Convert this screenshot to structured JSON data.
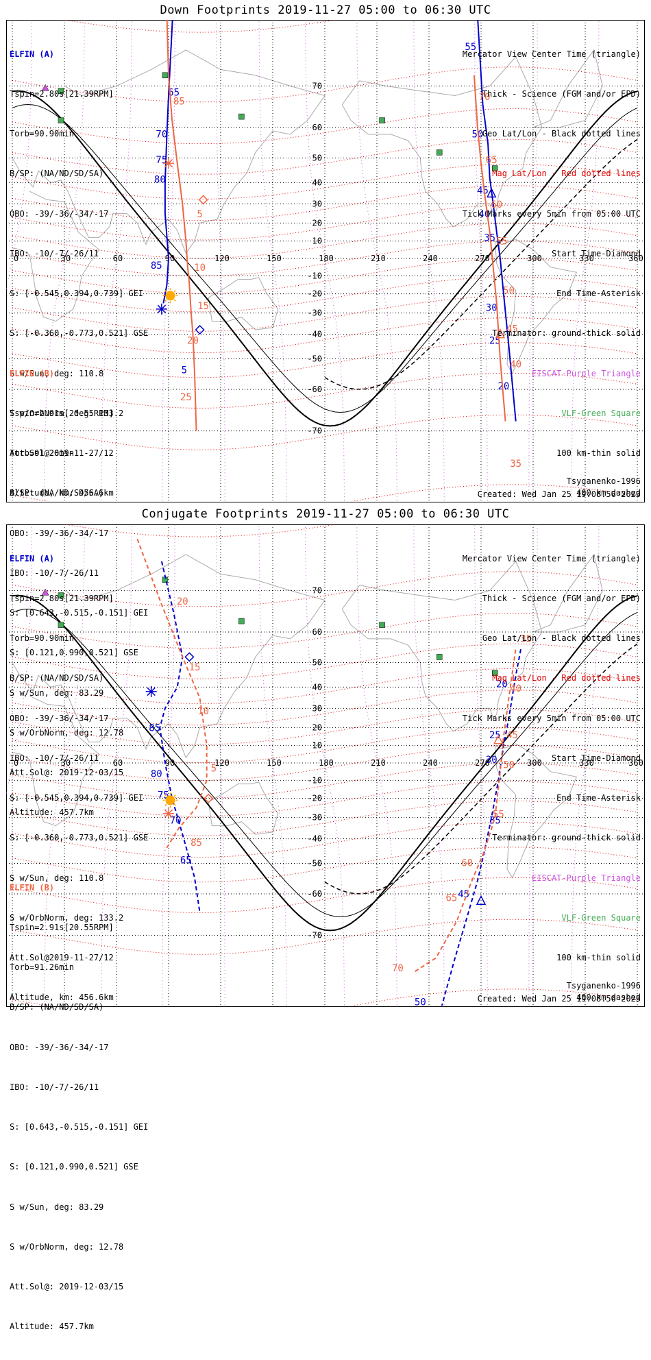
{
  "colors": {
    "elfin_a": "#0000cc",
    "elfin_b": "#ee6644",
    "geo_grid": "#000000",
    "mag_grid": "#dd0000",
    "eiscat": "#cc55dd",
    "vlf": "#44aa55",
    "sun": "#ffaa00",
    "coast": "#aaaaaa"
  },
  "panels": [
    {
      "title": "Down Footprints 2019-11-27 05:00 to 06:30 UTC",
      "right_legend": [
        {
          "text": "Mercator View Center Time (triangle)",
          "color": "#000000"
        },
        {
          "text": "Thick - Science (FGM and/or EPD)",
          "color": "#000000"
        },
        {
          "text": "Geo Lat/Lon - Black dotted lines",
          "color": "#000000"
        },
        {
          "text": "Mag Lat/Lon - Red dotted lines",
          "color": "#dd0000"
        },
        {
          "text": "Tick Marks every 5min from 05:00 UTC",
          "color": "#000000"
        },
        {
          "text": "Start Time-Diamond",
          "color": "#000000"
        },
        {
          "text": "End Time-Asterisk",
          "color": "#000000"
        },
        {
          "text": "Terminator: ground-thick solid",
          "color": "#000000"
        },
        {
          "text": "EISCAT-Purple Triangle",
          "color": "#cc55dd"
        },
        {
          "text": "VLF-Green Square",
          "color": "#44aa55"
        },
        {
          "text": "100 km-thin solid",
          "color": "#000000"
        },
        {
          "text": "400 km-dashed",
          "color": "#000000"
        }
      ],
      "model": "Tsyganenko-1996",
      "created": "Created: Wed Jan 25 19:08:56 2023"
    },
    {
      "title": "Conjugate Footprints 2019-11-27 05:00 to 06:30 UTC",
      "right_legend": [
        {
          "text": "Mercator View Center Time (triangle)",
          "color": "#000000"
        },
        {
          "text": "Thick - Science (FGM and/or EPD)",
          "color": "#000000"
        },
        {
          "text": "Geo Lat/Lon - Black dotted lines",
          "color": "#000000"
        },
        {
          "text": "Mag Lat/Lon - Red dotted lines",
          "color": "#dd0000"
        },
        {
          "text": "Tick Marks every 5min from 05:00 UTC",
          "color": "#000000"
        },
        {
          "text": "Start Time-Diamond",
          "color": "#000000"
        },
        {
          "text": "End Time-Asterisk",
          "color": "#000000"
        },
        {
          "text": "Terminator: ground-thick solid",
          "color": "#000000"
        },
        {
          "text": "EISCAT-Purple Triangle",
          "color": "#cc55dd"
        },
        {
          "text": "VLF-Green Square",
          "color": "#44aa55"
        },
        {
          "text": "100 km-thin solid",
          "color": "#000000"
        },
        {
          "text": "400 km-dashed",
          "color": "#000000"
        }
      ],
      "model": "Tsyganenko-1996",
      "created": "Created: Wed Jan 25 19:08:56 2023"
    }
  ],
  "elfin_a": {
    "label": "ELFIN (A)",
    "lines": [
      "Tspin=2.80s[21.39RPM]",
      "Torb=90.90min",
      "B/SP: (NA/ND/SD/SA)",
      "OBO: -39/-36/-34/-17",
      "IBO: -10/-7/-26/11",
      "S: [-0.545,0.394,0.739] GEI",
      "S: [-0.360,-0.773,0.521] GSE",
      "S w/Sun, deg: 110.8",
      "S w/OrbNorm, deg: 133.2",
      "Att.Sol@2019-11-27/12",
      "Altitude, km: 456.6km"
    ]
  },
  "elfin_b": {
    "label": "ELFIN (B)",
    "lines": [
      "Tspin=2.91s[20.55RPM]",
      "Torb=91.26min",
      "B/SP: (NA/ND/SD/SA)",
      "OBO: -39/-36/-34/-17",
      "IBO: -10/-7/-26/11",
      "S: [0.643,-0.515,-0.151] GEI",
      "S: [0.121,0.990,0.521] GSE",
      "S w/Sun, deg: 83.29",
      "S w/OrbNorm, deg: 12.78",
      "Att.Sol@: 2019-12-03/15",
      "Altitude: 457.7km"
    ]
  },
  "chart_data": [
    {
      "type": "map",
      "projection": "Mercator",
      "panel": "Down Footprints",
      "lon_ticks": [
        "0",
        "30",
        "60",
        "90",
        "120",
        "150",
        "180",
        "210",
        "240",
        "270",
        "300",
        "330",
        "360"
      ],
      "lat_ticks": [
        "70",
        "60",
        "50",
        "40",
        "30",
        "20",
        "10",
        "-10",
        "-20",
        "-30",
        "-40",
        "-50",
        "-60",
        "-70"
      ],
      "xlim": [
        0,
        360
      ],
      "ylim": [
        -78,
        78
      ],
      "grid": true,
      "tracks": [
        {
          "name": "ELFIN (A)",
          "color": "#0000cc",
          "segments": [
            [
              [
                93,
                82
              ],
              [
                90,
                68
              ],
              [
                89,
                58
              ],
              [
                88,
                40
              ],
              [
                88,
                25
              ],
              [
                90,
                0
              ],
              [
                89,
                -15
              ],
              [
                87,
                -25
              ]
            ],
            [
              [
                268,
                80
              ],
              [
                271,
                66
              ],
              [
                274,
                55
              ],
              [
                275,
                42
              ],
              [
                277,
                30
              ],
              [
                279,
                15
              ],
              [
                281,
                0
              ],
              [
                283,
                -20
              ],
              [
                286,
                -45
              ],
              [
                290,
                -68
              ]
            ]
          ],
          "labels": [
            {
              "text": "65",
              "lon": 93,
              "lat": 68
            },
            {
              "text": "70",
              "lon": 86,
              "lat": 57
            },
            {
              "text": "75",
              "lon": 86,
              "lat": 48
            },
            {
              "text": "80",
              "lon": 85,
              "lat": 40
            },
            {
              "text": "85",
              "lon": 83,
              "lat": -6
            },
            {
              "text": "5",
              "lon": 99,
              "lat": -55
            },
            {
              "text": "55",
              "lon": 264,
              "lat": 76
            },
            {
              "text": "50",
              "lon": 268,
              "lat": 57
            },
            {
              "text": "45",
              "lon": 271,
              "lat": 35
            },
            {
              "text": "40",
              "lon": 272,
              "lat": 23
            },
            {
              "text": "35",
              "lon": 275,
              "lat": 10
            },
            {
              "text": "30",
              "lon": 276,
              "lat": -29
            },
            {
              "text": "25",
              "lon": 278,
              "lat": -44
            },
            {
              "text": "20",
              "lon": 283,
              "lat": -60
            }
          ],
          "start": {
            "lon": 108,
            "lat": -38
          },
          "end": {
            "lon": 86,
            "lat": -28
          },
          "center": {
            "lon": 276,
            "lat": 35
          }
        },
        {
          "name": "ELFIN (B)",
          "color": "#ee6644",
          "segments": [
            [
              [
                89,
                80
              ],
              [
                90,
                72
              ],
              [
                92,
                62
              ],
              [
                95,
                48
              ],
              [
                98,
                30
              ],
              [
                100,
                10
              ],
              [
                101,
                -5
              ],
              [
                102,
                -15
              ],
              [
                103,
                -30
              ],
              [
                104,
                -40
              ],
              [
                105,
                -55
              ],
              [
                106,
                -70
              ]
            ],
            [
              [
                266,
                72
              ],
              [
                268,
                60
              ],
              [
                270,
                48
              ],
              [
                272,
                35
              ],
              [
                275,
                15
              ],
              [
                277,
                -5
              ],
              [
                279,
                -25
              ],
              [
                281,
                -50
              ],
              [
                284,
                -68
              ]
            ]
          ],
          "labels": [
            {
              "text": "85",
              "lon": 96,
              "lat": 66
            },
            {
              "text": "5",
              "lon": 108,
              "lat": 23
            },
            {
              "text": "10",
              "lon": 108,
              "lat": -7
            },
            {
              "text": "15",
              "lon": 110,
              "lat": -28
            },
            {
              "text": "20",
              "lon": 104,
              "lat": -44
            },
            {
              "text": "25",
              "lon": 100,
              "lat": -63
            },
            {
              "text": "70",
              "lon": 272,
              "lat": 67
            },
            {
              "text": "65",
              "lon": 276,
              "lat": 48
            },
            {
              "text": "60",
              "lon": 279,
              "lat": 28
            },
            {
              "text": "55",
              "lon": 282,
              "lat": 8
            },
            {
              "text": "50",
              "lon": 286,
              "lat": -20
            },
            {
              "text": "45",
              "lon": 288,
              "lat": -39
            },
            {
              "text": "40",
              "lon": 290,
              "lat": -53
            },
            {
              "text": "35",
              "lon": 290,
              "lat": -76
            }
          ],
          "start": {
            "lon": 110,
            "lat": 32
          },
          "end": {
            "lon": 90,
            "lat": 48
          },
          "center": {
            "lon": 281,
            "lat": -40
          }
        }
      ],
      "vlf_stations": [
        {
          "lon": 88,
          "lat": 72
        },
        {
          "lon": 28,
          "lat": 69
        },
        {
          "lon": 28,
          "lat": 62
        },
        {
          "lon": 132,
          "lat": 63
        },
        {
          "lon": 213,
          "lat": 62
        },
        {
          "lon": 246,
          "lat": 52
        },
        {
          "lon": 278,
          "lat": 46
        }
      ],
      "eiscat_stations": [
        {
          "lon": 19,
          "lat": 69.6
        }
      ],
      "sun": {
        "lon": 91,
        "lat": -21
      }
    },
    {
      "type": "map",
      "projection": "Mercator",
      "panel": "Conjugate Footprints",
      "lon_ticks": [
        "0",
        "30",
        "60",
        "90",
        "120",
        "150",
        "180",
        "210",
        "240",
        "270",
        "300",
        "330",
        "360"
      ],
      "lat_ticks": [
        "70",
        "60",
        "50",
        "40",
        "30",
        "20",
        "10",
        "-10",
        "-20",
        "-30",
        "-40",
        "-50",
        "-60",
        "-70"
      ],
      "xlim": [
        0,
        360
      ],
      "ylim": [
        -78,
        78
      ],
      "grid": true,
      "tracks": [
        {
          "name": "ELFIN (A)",
          "color": "#0000cc",
          "segments": [
            [
              [
                86,
                75
              ],
              [
                93,
                65
              ],
              [
                98,
                52
              ],
              [
                95,
                40
              ],
              [
                88,
                30
              ],
              [
                85,
                20
              ],
              [
                88,
                0
              ],
              [
                92,
                -20
              ],
              [
                98,
                -38
              ],
              [
                105,
                -55
              ],
              [
                108,
                -65
              ]
            ],
            [
              [
                244,
                -82
              ],
              [
                255,
                -74
              ],
              [
                262,
                -66
              ],
              [
                268,
                -56
              ],
              [
                272,
                -45
              ],
              [
                276,
                -30
              ],
              [
                280,
                -10
              ],
              [
                283,
                10
              ],
              [
                286,
                25
              ],
              [
                290,
                45
              ],
              [
                293,
                55
              ]
            ]
          ],
          "labels": [
            {
              "text": "85",
              "lon": 82,
              "lat": 18
            },
            {
              "text": "80",
              "lon": 83,
              "lat": -8
            },
            {
              "text": "75",
              "lon": 87,
              "lat": -20
            },
            {
              "text": "70",
              "lon": 94,
              "lat": -33
            },
            {
              "text": "65",
              "lon": 100,
              "lat": -50
            },
            {
              "text": "50",
              "lon": 235,
              "lat": -80
            },
            {
              "text": "45",
              "lon": 260,
              "lat": -61
            },
            {
              "text": "35",
              "lon": 278,
              "lat": -33
            },
            {
              "text": "30",
              "lon": 276,
              "lat": 0
            },
            {
              "text": "25",
              "lon": 278,
              "lat": 14
            },
            {
              "text": "20",
              "lon": 282,
              "lat": 40
            }
          ],
          "start": {
            "lon": 102,
            "lat": 52
          },
          "end": {
            "lon": 80,
            "lat": 38
          },
          "center": {
            "lon": 270,
            "lat": -62
          }
        },
        {
          "name": "ELFIN (B)",
          "color": "#ee6644",
          "segments": [
            [
              [
                72,
                78
              ],
              [
                86,
                67
              ],
              [
                98,
                52
              ],
              [
                108,
                35
              ],
              [
                112,
                10
              ],
              [
                112,
                -10
              ],
              [
                106,
                -25
              ],
              [
                96,
                -35
              ],
              [
                88,
                -45
              ]
            ],
            [
              [
                232,
                -76
              ],
              [
                244,
                -74
              ],
              [
                256,
                -67
              ],
              [
                264,
                -57
              ],
              [
                272,
                -45
              ],
              [
                278,
                -30
              ],
              [
                281,
                -5
              ],
              [
                283,
                15
              ],
              [
                286,
                35
              ],
              [
                290,
                55
              ]
            ]
          ],
          "labels": [
            {
              "text": "20",
              "lon": 98,
              "lat": 67
            },
            {
              "text": "15",
              "lon": 105,
              "lat": 47
            },
            {
              "text": "10",
              "lon": 110,
              "lat": 27
            },
            {
              "text": "5",
              "lon": 116,
              "lat": -5
            },
            {
              "text": "85",
              "lon": 106,
              "lat": -43
            },
            {
              "text": "70",
              "lon": 222,
              "lat": -76
            },
            {
              "text": "65",
              "lon": 253,
              "lat": -62
            },
            {
              "text": "60",
              "lon": 262,
              "lat": -51
            },
            {
              "text": "55",
              "lon": 280,
              "lat": -30
            },
            {
              "text": "50",
              "lon": 286,
              "lat": -3
            },
            {
              "text": "45",
              "lon": 288,
              "lat": 14
            },
            {
              "text": "40",
              "lon": 290,
              "lat": 38
            },
            {
              "text": "35",
              "lon": 296,
              "lat": 57
            }
          ],
          "start": {
            "lon": 113,
            "lat": -20
          },
          "end": {
            "lon": 90,
            "lat": -28
          },
          "center": {
            "lon": 280,
            "lat": 13
          }
        }
      ],
      "vlf_stations": [
        {
          "lon": 88,
          "lat": 72
        },
        {
          "lon": 28,
          "lat": 69
        },
        {
          "lon": 28,
          "lat": 62
        },
        {
          "lon": 132,
          "lat": 63
        },
        {
          "lon": 213,
          "lat": 62
        },
        {
          "lon": 246,
          "lat": 52
        },
        {
          "lon": 278,
          "lat": 46
        }
      ],
      "eiscat_stations": [
        {
          "lon": 19,
          "lat": 69.6
        }
      ],
      "sun": {
        "lon": 91,
        "lat": -21
      }
    }
  ]
}
